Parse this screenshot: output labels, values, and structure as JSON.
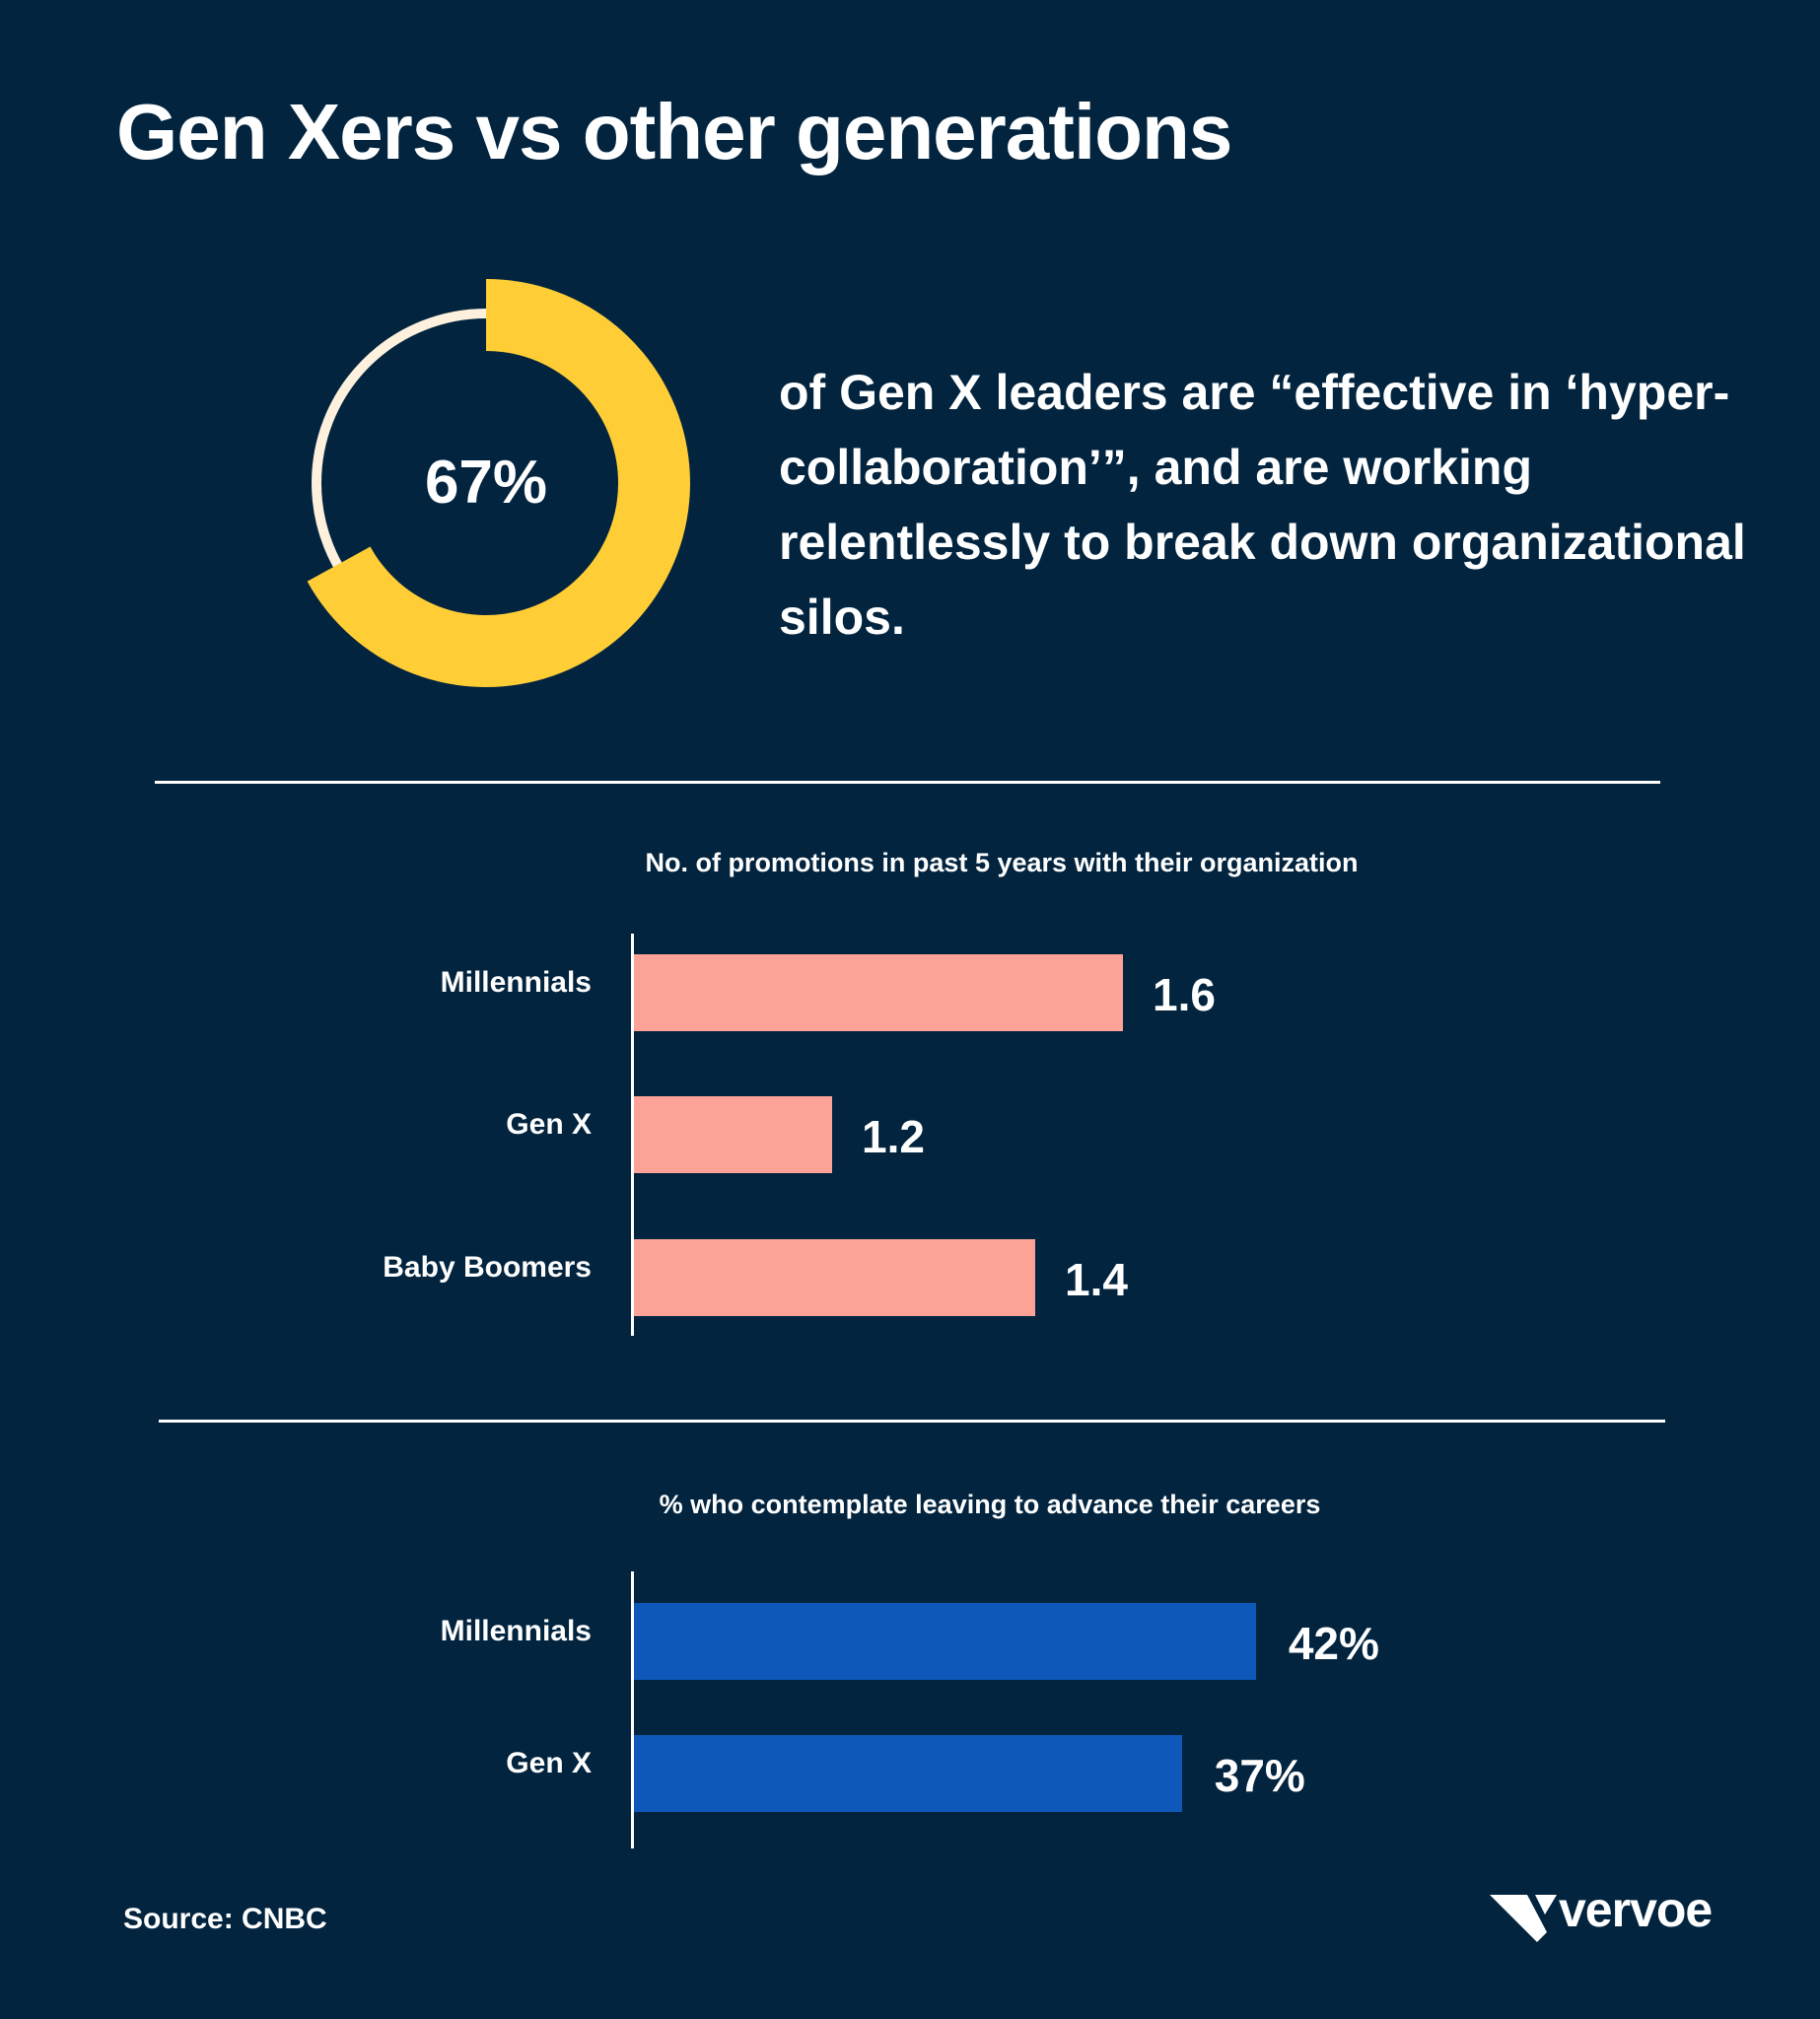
{
  "title": "Gen Xers vs other generations",
  "stat": {
    "value_label": "67%",
    "value": 67,
    "text": "of Gen X leaders are “effective in ‘hyper-collaboration’”, and are working relentlessly to break down organizational silos.",
    "colors": {
      "fill": "#ffcd36",
      "track": "#fdf0dc"
    }
  },
  "chart_data": [
    {
      "type": "bar",
      "orientation": "horizontal",
      "title": "No. of promotions in past 5 years with their organization",
      "categories": [
        "Millennials",
        "Gen X",
        "Baby Boomers"
      ],
      "values": [
        1.6,
        1.2,
        1.4
      ],
      "value_labels": [
        "1.6",
        "1.2",
        "1.4"
      ],
      "color": "#fca296",
      "grid": false
    },
    {
      "type": "bar",
      "orientation": "horizontal",
      "title": "% who contemplate leaving to advance their careers",
      "categories": [
        "Millennials",
        "Gen X"
      ],
      "values": [
        42,
        37
      ],
      "value_labels": [
        "42%",
        "37%"
      ],
      "color": "#0d58b8",
      "grid": false
    }
  ],
  "source": "Source: CNBC",
  "logo": {
    "text": "vervoe"
  },
  "background": "#02243f"
}
